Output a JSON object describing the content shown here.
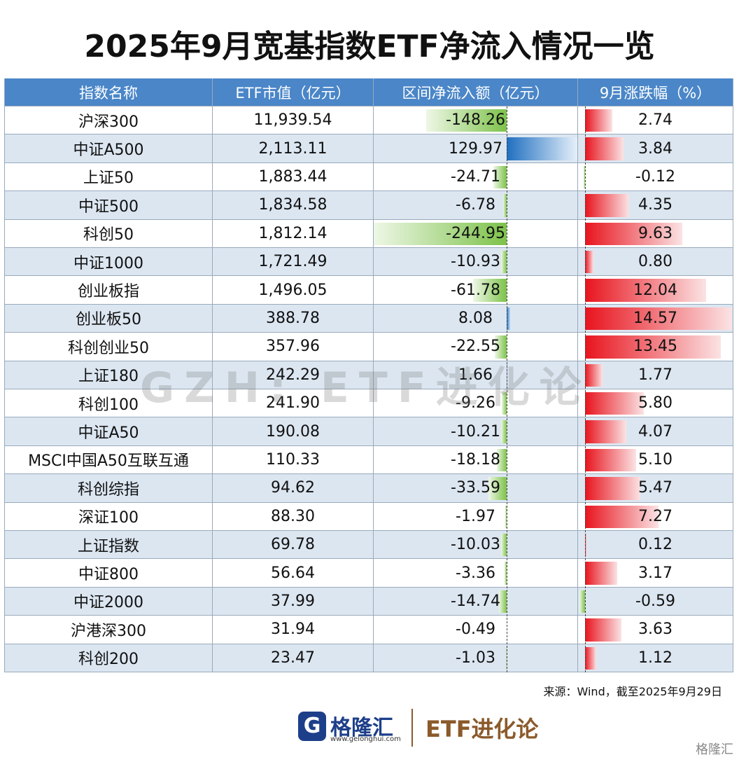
{
  "title": "2025年9月宽基指数ETF净流入情况一览",
  "table": {
    "headers": [
      "指数名称",
      "ETF市值（亿元）",
      "区间净流入额（亿元）",
      "9月涨跌幅（%）"
    ],
    "rows": [
      [
        "沪深300",
        "11,939.54",
        "-148.26",
        "2.74"
      ],
      [
        "中证A500",
        "2,113.11",
        "129.97",
        "3.84"
      ],
      [
        "上证50",
        "1,883.44",
        "-24.71",
        "-0.12"
      ],
      [
        "中证500",
        "1,834.58",
        "-6.78",
        "4.35"
      ],
      [
        "科创50",
        "1,812.14",
        "-244.95",
        "9.63"
      ],
      [
        "中证1000",
        "1,721.49",
        "-10.93",
        "0.80"
      ],
      [
        "创业板指",
        "1,496.05",
        "-61.78",
        "12.04"
      ],
      [
        "创业板50",
        "388.78",
        "8.08",
        "14.57"
      ],
      [
        "科创创业50",
        "357.96",
        "-22.55",
        "13.45"
      ],
      [
        "上证180",
        "242.29",
        "1.66",
        "1.77"
      ],
      [
        "科创100",
        "241.90",
        "-9.26",
        "5.80"
      ],
      [
        "中证A50",
        "190.08",
        "-10.21",
        "4.07"
      ],
      [
        "MSCI中国A50互联互通",
        "110.33",
        "-18.18",
        "5.10"
      ],
      [
        "科创综指",
        "94.62",
        "-33.59",
        "5.47"
      ],
      [
        "深证100",
        "88.30",
        "-1.97",
        "7.27"
      ],
      [
        "上证指数",
        "69.78",
        "-10.03",
        "0.12"
      ],
      [
        "中证800",
        "56.64",
        "-3.36",
        "3.17"
      ],
      [
        "中证2000",
        "37.99",
        "-14.74",
        "-0.59"
      ],
      [
        "沪港深300",
        "31.94",
        "-0.49",
        "3.63"
      ],
      [
        "科创200",
        "23.47",
        "-1.03",
        "1.12"
      ]
    ]
  },
  "watermark": "GZH: ETF进化论",
  "source": "来源：Wind，截至2025年9月29日",
  "footer": {
    "logo": "格隆汇",
    "url": "www.gelonghui.com",
    "brand": "ETF进化论",
    "corner": "格隆汇"
  }
}
